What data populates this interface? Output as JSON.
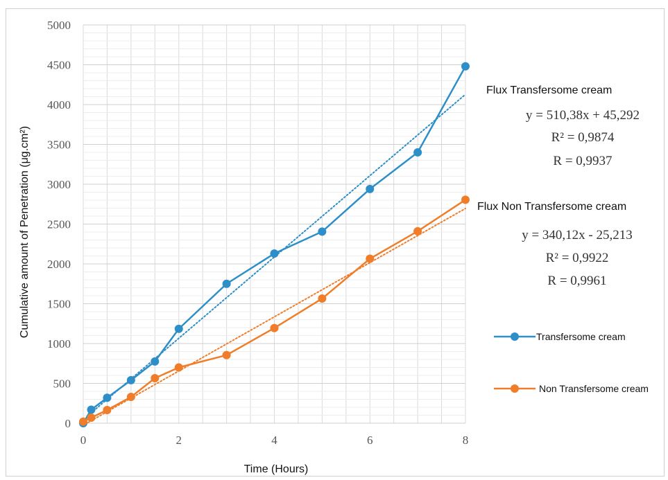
{
  "chart_data": {
    "type": "line",
    "xlabel": "Time (Hours)",
    "ylabel": "Cumulative amount of Penetration  (μg.cm²)",
    "xlim": [
      0,
      8
    ],
    "ylim": [
      0,
      5000
    ],
    "x_ticks": [
      0,
      2,
      4,
      6,
      8
    ],
    "x_tick_labels": [
      "0",
      "2",
      "4",
      "6",
      "8"
    ],
    "y_ticks": [
      0,
      500,
      1000,
      1500,
      2000,
      2500,
      3000,
      3500,
      4000,
      4500,
      5000
    ],
    "y_tick_labels": [
      "0",
      "500",
      "1000",
      "1500",
      "2000",
      "2500",
      "3000",
      "3500",
      "4000",
      "4500",
      "5000"
    ],
    "grid": true,
    "legend_position": "right",
    "series": [
      {
        "name": "Transfersome cream",
        "color": "#2e8fc8",
        "x": [
          0,
          0.167,
          0.5,
          1,
          1.5,
          2,
          3,
          4,
          5,
          6,
          7,
          8
        ],
        "y": [
          0,
          170,
          320,
          540,
          775,
          1185,
          1750,
          2130,
          2405,
          2940,
          3400,
          4480
        ],
        "trendline": {
          "slope": 510.38,
          "intercept": 45.292
        }
      },
      {
        "name": "Non Transfersome cream",
        "color": "#ef7d2a",
        "x": [
          0,
          0.167,
          0.5,
          1,
          1.5,
          2,
          3,
          4,
          5,
          6,
          7,
          8
        ],
        "y": [
          20,
          70,
          165,
          330,
          565,
          700,
          855,
          1195,
          1565,
          2065,
          2410,
          2805
        ],
        "trendline": {
          "slope": 340.12,
          "intercept": -25.213
        }
      }
    ],
    "annotations": [
      {
        "title": "Flux Transfersome cream",
        "equation": "y = 510,38x + 45,292",
        "r2": "R² = 0,9874",
        "r": "R = 0,9937"
      },
      {
        "title": "Flux Non Transfersome cream",
        "equation": "y = 340,12x - 25,213",
        "r2": "R² = 0,9922",
        "r": "R = 0,9961"
      }
    ]
  }
}
